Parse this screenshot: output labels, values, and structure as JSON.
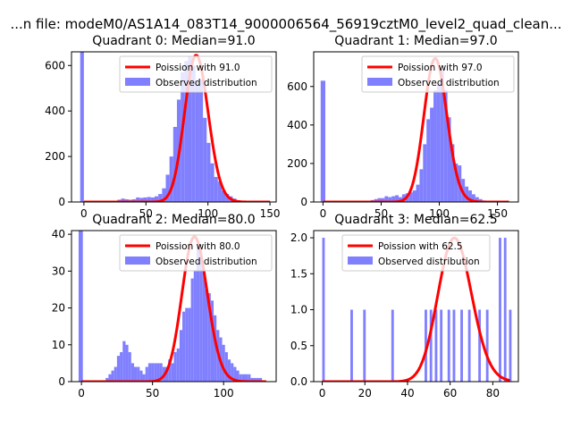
{
  "suptitle": "...n file: modeM0/AS1A14_083T14_9000006564_56919cztM0_level2_quad_clean...",
  "colors": {
    "hist": "#8080ff",
    "curve": "#ff0000",
    "axis": "#000000",
    "legend_border": "#cccccc"
  },
  "chart_data": [
    {
      "type": "bar",
      "title": "Quadrant 0: Median=91.0",
      "legend": [
        "Poission with 91.0",
        "Observed distribution"
      ],
      "legend_position": "top-right",
      "xlim": [
        -10,
        155
      ],
      "ylim": [
        0,
        660
      ],
      "xticks": [
        0,
        50,
        100,
        150
      ],
      "yticks": [
        0,
        200,
        400,
        600
      ],
      "bin_edges": [
        -3,
        0,
        3,
        6,
        9,
        12,
        15,
        18,
        21,
        24,
        27,
        30,
        33,
        36,
        39,
        42,
        45,
        48,
        51,
        54,
        57,
        60,
        63,
        66,
        69,
        72,
        75,
        78,
        81,
        84,
        87,
        90,
        93,
        96,
        99,
        102,
        105,
        108,
        111,
        114,
        117,
        120,
        123,
        126,
        129,
        132,
        135,
        138,
        141,
        144,
        147
      ],
      "hist_values": [
        660,
        0,
        0,
        0,
        0,
        0,
        0,
        0,
        3,
        5,
        10,
        15,
        12,
        10,
        12,
        20,
        18,
        20,
        22,
        20,
        25,
        35,
        60,
        120,
        200,
        330,
        450,
        570,
        620,
        640,
        600,
        530,
        540,
        370,
        260,
        170,
        110,
        90,
        50,
        35,
        25,
        15,
        8,
        3,
        0,
        0,
        0,
        2,
        0,
        0
      ],
      "curve": {
        "lambda": 91.0,
        "x_start": 0,
        "x_end": 150,
        "scale": 645
      }
    },
    {
      "type": "bar",
      "title": "Quadrant 1: Median=97.0",
      "legend": [
        "Poission with 97.0",
        "Observed distribution"
      ],
      "legend_position": "top-right",
      "xlim": [
        -8,
        168
      ],
      "ylim": [
        0,
        780
      ],
      "xticks": [
        0,
        50,
        100,
        150
      ],
      "yticks": [
        0,
        200,
        400,
        600
      ],
      "bin_edges": [
        -2,
        2,
        5,
        8,
        11,
        14,
        17,
        20,
        23,
        26,
        29,
        32,
        35,
        38,
        41,
        44,
        47,
        50,
        53,
        56,
        59,
        62,
        65,
        68,
        71,
        74,
        77,
        80,
        83,
        86,
        89,
        92,
        95,
        98,
        101,
        104,
        107,
        110,
        113,
        116,
        119,
        122,
        125,
        128,
        131,
        134,
        137,
        140,
        143,
        146,
        149,
        152,
        155,
        158,
        161
      ],
      "hist_values": [
        630,
        0,
        0,
        0,
        0,
        0,
        0,
        0,
        0,
        0,
        0,
        0,
        0,
        0,
        10,
        15,
        20,
        20,
        30,
        25,
        30,
        35,
        25,
        40,
        45,
        50,
        60,
        90,
        170,
        300,
        430,
        490,
        580,
        620,
        690,
        580,
        440,
        300,
        200,
        190,
        120,
        80,
        60,
        40,
        25,
        15,
        8,
        5,
        3,
        2,
        1,
        0,
        0,
        0
      ],
      "curve": {
        "lambda": 97.0,
        "x_start": 0,
        "x_end": 160,
        "scale": 745
      }
    },
    {
      "type": "bar",
      "title": "Quadrant 2: Median=80.0",
      "legend": [
        "Poission with 80.0",
        "Observed distribution"
      ],
      "legend_position": "top-right",
      "xlim": [
        -7,
        137
      ],
      "ylim": [
        0,
        41
      ],
      "xticks": [
        0,
        50,
        100
      ],
      "yticks": [
        0,
        10,
        20,
        30,
        40
      ],
      "bin_edges": [
        -2,
        1,
        3,
        5,
        7,
        9,
        11,
        13,
        15,
        17,
        19,
        21,
        23,
        25,
        27,
        29,
        31,
        33,
        35,
        37,
        39,
        41,
        43,
        45,
        47,
        49,
        51,
        53,
        55,
        57,
        59,
        61,
        63,
        65,
        67,
        69,
        71,
        73,
        75,
        77,
        79,
        81,
        83,
        85,
        87,
        89,
        91,
        93,
        95,
        97,
        99,
        101,
        103,
        105,
        107,
        109,
        111,
        113,
        115,
        117,
        119,
        121,
        123,
        125,
        127,
        129,
        131
      ],
      "hist_values": [
        41,
        0,
        0,
        0,
        0,
        0,
        0,
        0,
        0,
        1,
        2,
        3,
        4,
        7,
        8,
        11,
        10,
        8,
        5,
        4,
        4,
        3,
        2,
        4,
        5,
        5,
        5,
        5,
        5,
        4,
        4,
        6,
        5,
        8,
        9,
        14,
        19,
        20,
        20,
        28,
        30,
        37,
        36,
        30,
        25,
        24,
        22,
        18,
        14,
        12,
        10,
        8,
        6,
        5,
        4,
        3,
        2,
        2,
        2,
        2,
        1,
        1,
        1,
        1,
        0,
        0
      ],
      "curve": {
        "lambda": 80.0,
        "x_start": 0,
        "x_end": 130,
        "scale": 39.3
      }
    },
    {
      "type": "bar",
      "title": "Quadrant 3: Median=62.5",
      "legend": [
        "Poission with 62.5",
        "Observed distribution"
      ],
      "legend_position": "top-center",
      "xlim": [
        -4,
        92
      ],
      "ylim": [
        0,
        2.1
      ],
      "xticks": [
        0,
        20,
        40,
        60,
        80
      ],
      "yticks": [
        0,
        0.5,
        1.0,
        1.5,
        2.0
      ],
      "yticklabels": [
        "0.0",
        "0.5",
        "1.0",
        "1.5",
        "2.0"
      ],
      "bin_edges": [
        0,
        1.2,
        2.4,
        3.6,
        4.8,
        6,
        7.2,
        8.4,
        9.6,
        10.8,
        12,
        13.2,
        14.4,
        15.6,
        16.8,
        18,
        19.2,
        20.4,
        21.6,
        22.8,
        24,
        25.2,
        26.4,
        27.6,
        28.8,
        30,
        31.2,
        32.4,
        33.6,
        34.8,
        36,
        37.2,
        38.4,
        39.6,
        40.8,
        42,
        43.2,
        44.4,
        45.6,
        46.8,
        48,
        49.2,
        50.4,
        51.6,
        52.8,
        54,
        55.2,
        56.4,
        57.6,
        58.8,
        60,
        61.2,
        62.4,
        63.6,
        64.8,
        66,
        67.2,
        68.4,
        69.6,
        70.8,
        72,
        73.2,
        74.4,
        75.6,
        76.8,
        78,
        79.2,
        80.4,
        81.6,
        82.8,
        84,
        85.2,
        86.4,
        87.6,
        88.8
      ],
      "hist_values": [
        2,
        0,
        0,
        0,
        0,
        0,
        0,
        0,
        0,
        0,
        0,
        1,
        0,
        0,
        0,
        0,
        1,
        0,
        0,
        0,
        0,
        0,
        0,
        0,
        0,
        0,
        0,
        1,
        0,
        0,
        0,
        0,
        0,
        0,
        0,
        0,
        0,
        0,
        0,
        0,
        1,
        0,
        1,
        0,
        1,
        0,
        1,
        0,
        0,
        1,
        0,
        1,
        0,
        0,
        1,
        0,
        0,
        1,
        0,
        0,
        0,
        1,
        0,
        0,
        1,
        0,
        0,
        0,
        0,
        2,
        0,
        2,
        0,
        1
      ],
      "curve": {
        "lambda": 62.5,
        "x_start": 0,
        "x_end": 88,
        "scale": 2.0
      }
    }
  ]
}
